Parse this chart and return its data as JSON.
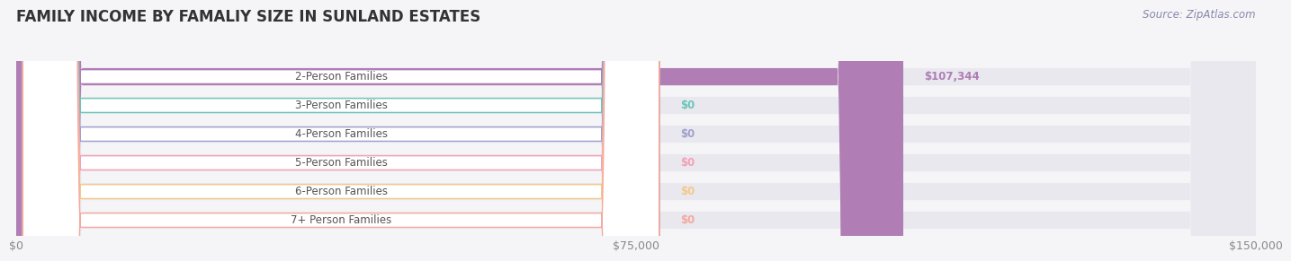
{
  "title": "FAMILY INCOME BY FAMALIY SIZE IN SUNLAND ESTATES",
  "source": "Source: ZipAtlas.com",
  "categories": [
    "2-Person Families",
    "3-Person Families",
    "4-Person Families",
    "5-Person Families",
    "6-Person Families",
    "7+ Person Families"
  ],
  "values": [
    107344,
    0,
    0,
    0,
    0,
    0
  ],
  "bar_colors": [
    "#b07db5",
    "#6cc5b8",
    "#a0a0d0",
    "#f5a0b5",
    "#f5c888",
    "#f5a8a0"
  ],
  "value_labels": [
    "$107,344",
    "$0",
    "$0",
    "$0",
    "$0",
    "$0"
  ],
  "xlim": [
    0,
    150000
  ],
  "xticks": [
    0,
    75000,
    150000
  ],
  "xticklabels": [
    "$0",
    "$75,000",
    "$150,000"
  ],
  "background_color": "#f5f5f8",
  "bar_bg_color": "#e8e8ee",
  "title_fontsize": 12,
  "label_fontsize": 8.5,
  "value_fontsize": 8.5,
  "source_fontsize": 8.5
}
